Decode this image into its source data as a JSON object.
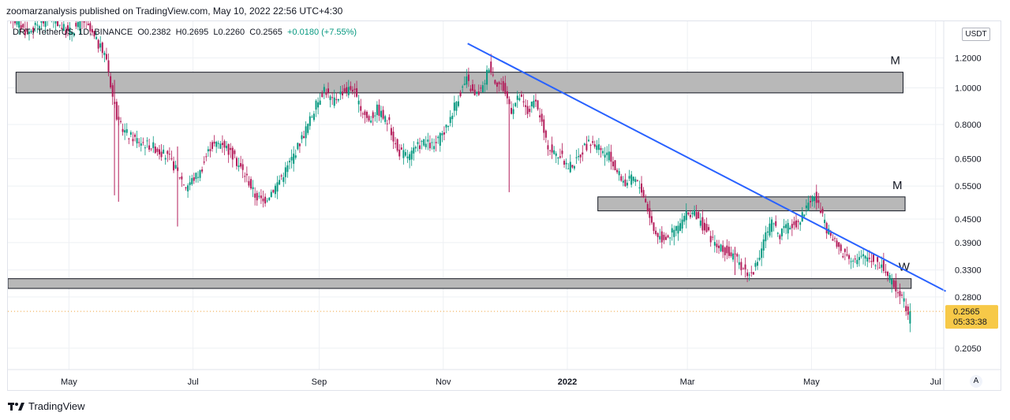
{
  "publisher_line": "zoomarzanalysis published on TradingView.com, May 10, 2022 22:56 UTC+4:30",
  "legend": {
    "symbol": "DRT / TetherUS, 1D, BINANCE",
    "open": "O0.2382",
    "high": "H0.2695",
    "low": "L0.2260",
    "close": "C0.2565",
    "change": "+0.0180 (+7.55%)"
  },
  "currency_badge": "USDT",
  "auto_scale_label": "A",
  "footer_brand": "TradingView",
  "last_price": {
    "value": "0.2565",
    "countdown": "05:33:38"
  },
  "chart_data": {
    "type": "candlestick",
    "title": "DRT / TetherUS, 1D, BINANCE",
    "y_scale": "log",
    "ylim": [
      0.18,
      1.5
    ],
    "xlim_days": [
      0,
      460
    ],
    "y_ticks": [
      {
        "value": 1.2,
        "label": "1.2000"
      },
      {
        "value": 1.0,
        "label": "1.0000"
      },
      {
        "value": 0.8,
        "label": "0.8000"
      },
      {
        "value": 0.65,
        "label": "0.6500"
      },
      {
        "value": 0.55,
        "label": "0.5500"
      },
      {
        "value": 0.45,
        "label": "0.4500"
      },
      {
        "value": 0.39,
        "label": "0.3900"
      },
      {
        "value": 0.33,
        "label": "0.3300"
      },
      {
        "value": 0.28,
        "label": "0.2800"
      },
      {
        "value": 0.205,
        "label": "0.2050"
      }
    ],
    "x_ticks": [
      {
        "day": 30,
        "label": "May"
      },
      {
        "day": 91,
        "label": "Jul"
      },
      {
        "day": 153,
        "label": "Sep"
      },
      {
        "day": 214,
        "label": "Nov"
      },
      {
        "day": 275,
        "label": "2022"
      },
      {
        "day": 334,
        "label": "Mar"
      },
      {
        "day": 395,
        "label": "May"
      },
      {
        "day": 456,
        "label": "Jul"
      }
    ],
    "price_path": [
      [
        2,
        1.55
      ],
      [
        10,
        1.4
      ],
      [
        22,
        1.55
      ],
      [
        30,
        1.4
      ],
      [
        38,
        1.5
      ],
      [
        45,
        1.3
      ],
      [
        49,
        1.2
      ],
      [
        52,
        0.95
      ],
      [
        55,
        0.8
      ],
      [
        60,
        0.75
      ],
      [
        66,
        0.72
      ],
      [
        72,
        0.7
      ],
      [
        80,
        0.65
      ],
      [
        88,
        0.55
      ],
      [
        95,
        0.6
      ],
      [
        100,
        0.7
      ],
      [
        106,
        0.72
      ],
      [
        112,
        0.65
      ],
      [
        118,
        0.58
      ],
      [
        122,
        0.52
      ],
      [
        126,
        0.5
      ],
      [
        132,
        0.55
      ],
      [
        138,
        0.62
      ],
      [
        143,
        0.7
      ],
      [
        148,
        0.8
      ],
      [
        152,
        0.9
      ],
      [
        156,
        1.0
      ],
      [
        160,
        0.92
      ],
      [
        165,
        0.98
      ],
      [
        170,
        1.0
      ],
      [
        173,
        0.9
      ],
      [
        178,
        0.82
      ],
      [
        182,
        0.88
      ],
      [
        188,
        0.8
      ],
      [
        192,
        0.68
      ],
      [
        198,
        0.66
      ],
      [
        204,
        0.72
      ],
      [
        210,
        0.7
      ],
      [
        216,
        0.78
      ],
      [
        220,
        0.9
      ],
      [
        224,
        1.0
      ],
      [
        226,
        1.05
      ],
      [
        230,
        0.95
      ],
      [
        234,
        1.0
      ],
      [
        237,
        1.15
      ],
      [
        240,
        1.05
      ],
      [
        244,
        1.0
      ],
      [
        248,
        0.88
      ],
      [
        252,
        0.95
      ],
      [
        256,
        0.86
      ],
      [
        259,
        0.92
      ],
      [
        262,
        0.85
      ],
      [
        265,
        0.72
      ],
      [
        268,
        0.68
      ],
      [
        272,
        0.66
      ],
      [
        276,
        0.62
      ],
      [
        280,
        0.64
      ],
      [
        284,
        0.7
      ],
      [
        288,
        0.72
      ],
      [
        292,
        0.68
      ],
      [
        296,
        0.66
      ],
      [
        300,
        0.6
      ],
      [
        304,
        0.56
      ],
      [
        308,
        0.58
      ],
      [
        312,
        0.54
      ],
      [
        315,
        0.48
      ],
      [
        318,
        0.42
      ],
      [
        322,
        0.4
      ],
      [
        326,
        0.41
      ],
      [
        330,
        0.43
      ],
      [
        334,
        0.46
      ],
      [
        337,
        0.47
      ],
      [
        341,
        0.44
      ],
      [
        345,
        0.41
      ],
      [
        349,
        0.38
      ],
      [
        353,
        0.37
      ],
      [
        357,
        0.36
      ],
      [
        361,
        0.34
      ],
      [
        365,
        0.32
      ],
      [
        369,
        0.34
      ],
      [
        372,
        0.4
      ],
      [
        376,
        0.44
      ],
      [
        380,
        0.41
      ],
      [
        384,
        0.43
      ],
      [
        388,
        0.44
      ],
      [
        391,
        0.46
      ],
      [
        394,
        0.5
      ],
      [
        397,
        0.52
      ],
      [
        400,
        0.47
      ],
      [
        403,
        0.42
      ],
      [
        407,
        0.39
      ],
      [
        410,
        0.37
      ],
      [
        414,
        0.36
      ],
      [
        418,
        0.35
      ],
      [
        422,
        0.36
      ],
      [
        426,
        0.35
      ],
      [
        430,
        0.34
      ],
      [
        433,
        0.32
      ],
      [
        436,
        0.3
      ],
      [
        439,
        0.29
      ],
      [
        441,
        0.27
      ],
      [
        443,
        0.2565
      ]
    ],
    "last_candles": [
      {
        "o": 0.2382,
        "h": 0.2695,
        "l": 0.226,
        "c": 0.2565
      }
    ],
    "zones": [
      {
        "label": "M",
        "day_from": 4,
        "day_to": 440,
        "price_low": 0.97,
        "price_high": 1.1
      },
      {
        "label": "M",
        "day_from": 290,
        "day_to": 441,
        "price_low": 0.473,
        "price_high": 0.515
      },
      {
        "label": "W",
        "day_from": 0,
        "day_to": 444,
        "price_low": 0.295,
        "price_high": 0.313
      }
    ],
    "trendline": {
      "from": {
        "day": 226,
        "price": 1.31
      },
      "to": {
        "day": 461,
        "price": 0.29
      }
    },
    "last_price_line": 0.2565,
    "colors": {
      "up": "#089981",
      "down": "#b31c5a",
      "zone_fill": "#b8b8b8",
      "zone_border": "#131722",
      "trendline": "#2962ff",
      "last_price": "#f7c948",
      "grid": "#eef0f4"
    }
  }
}
